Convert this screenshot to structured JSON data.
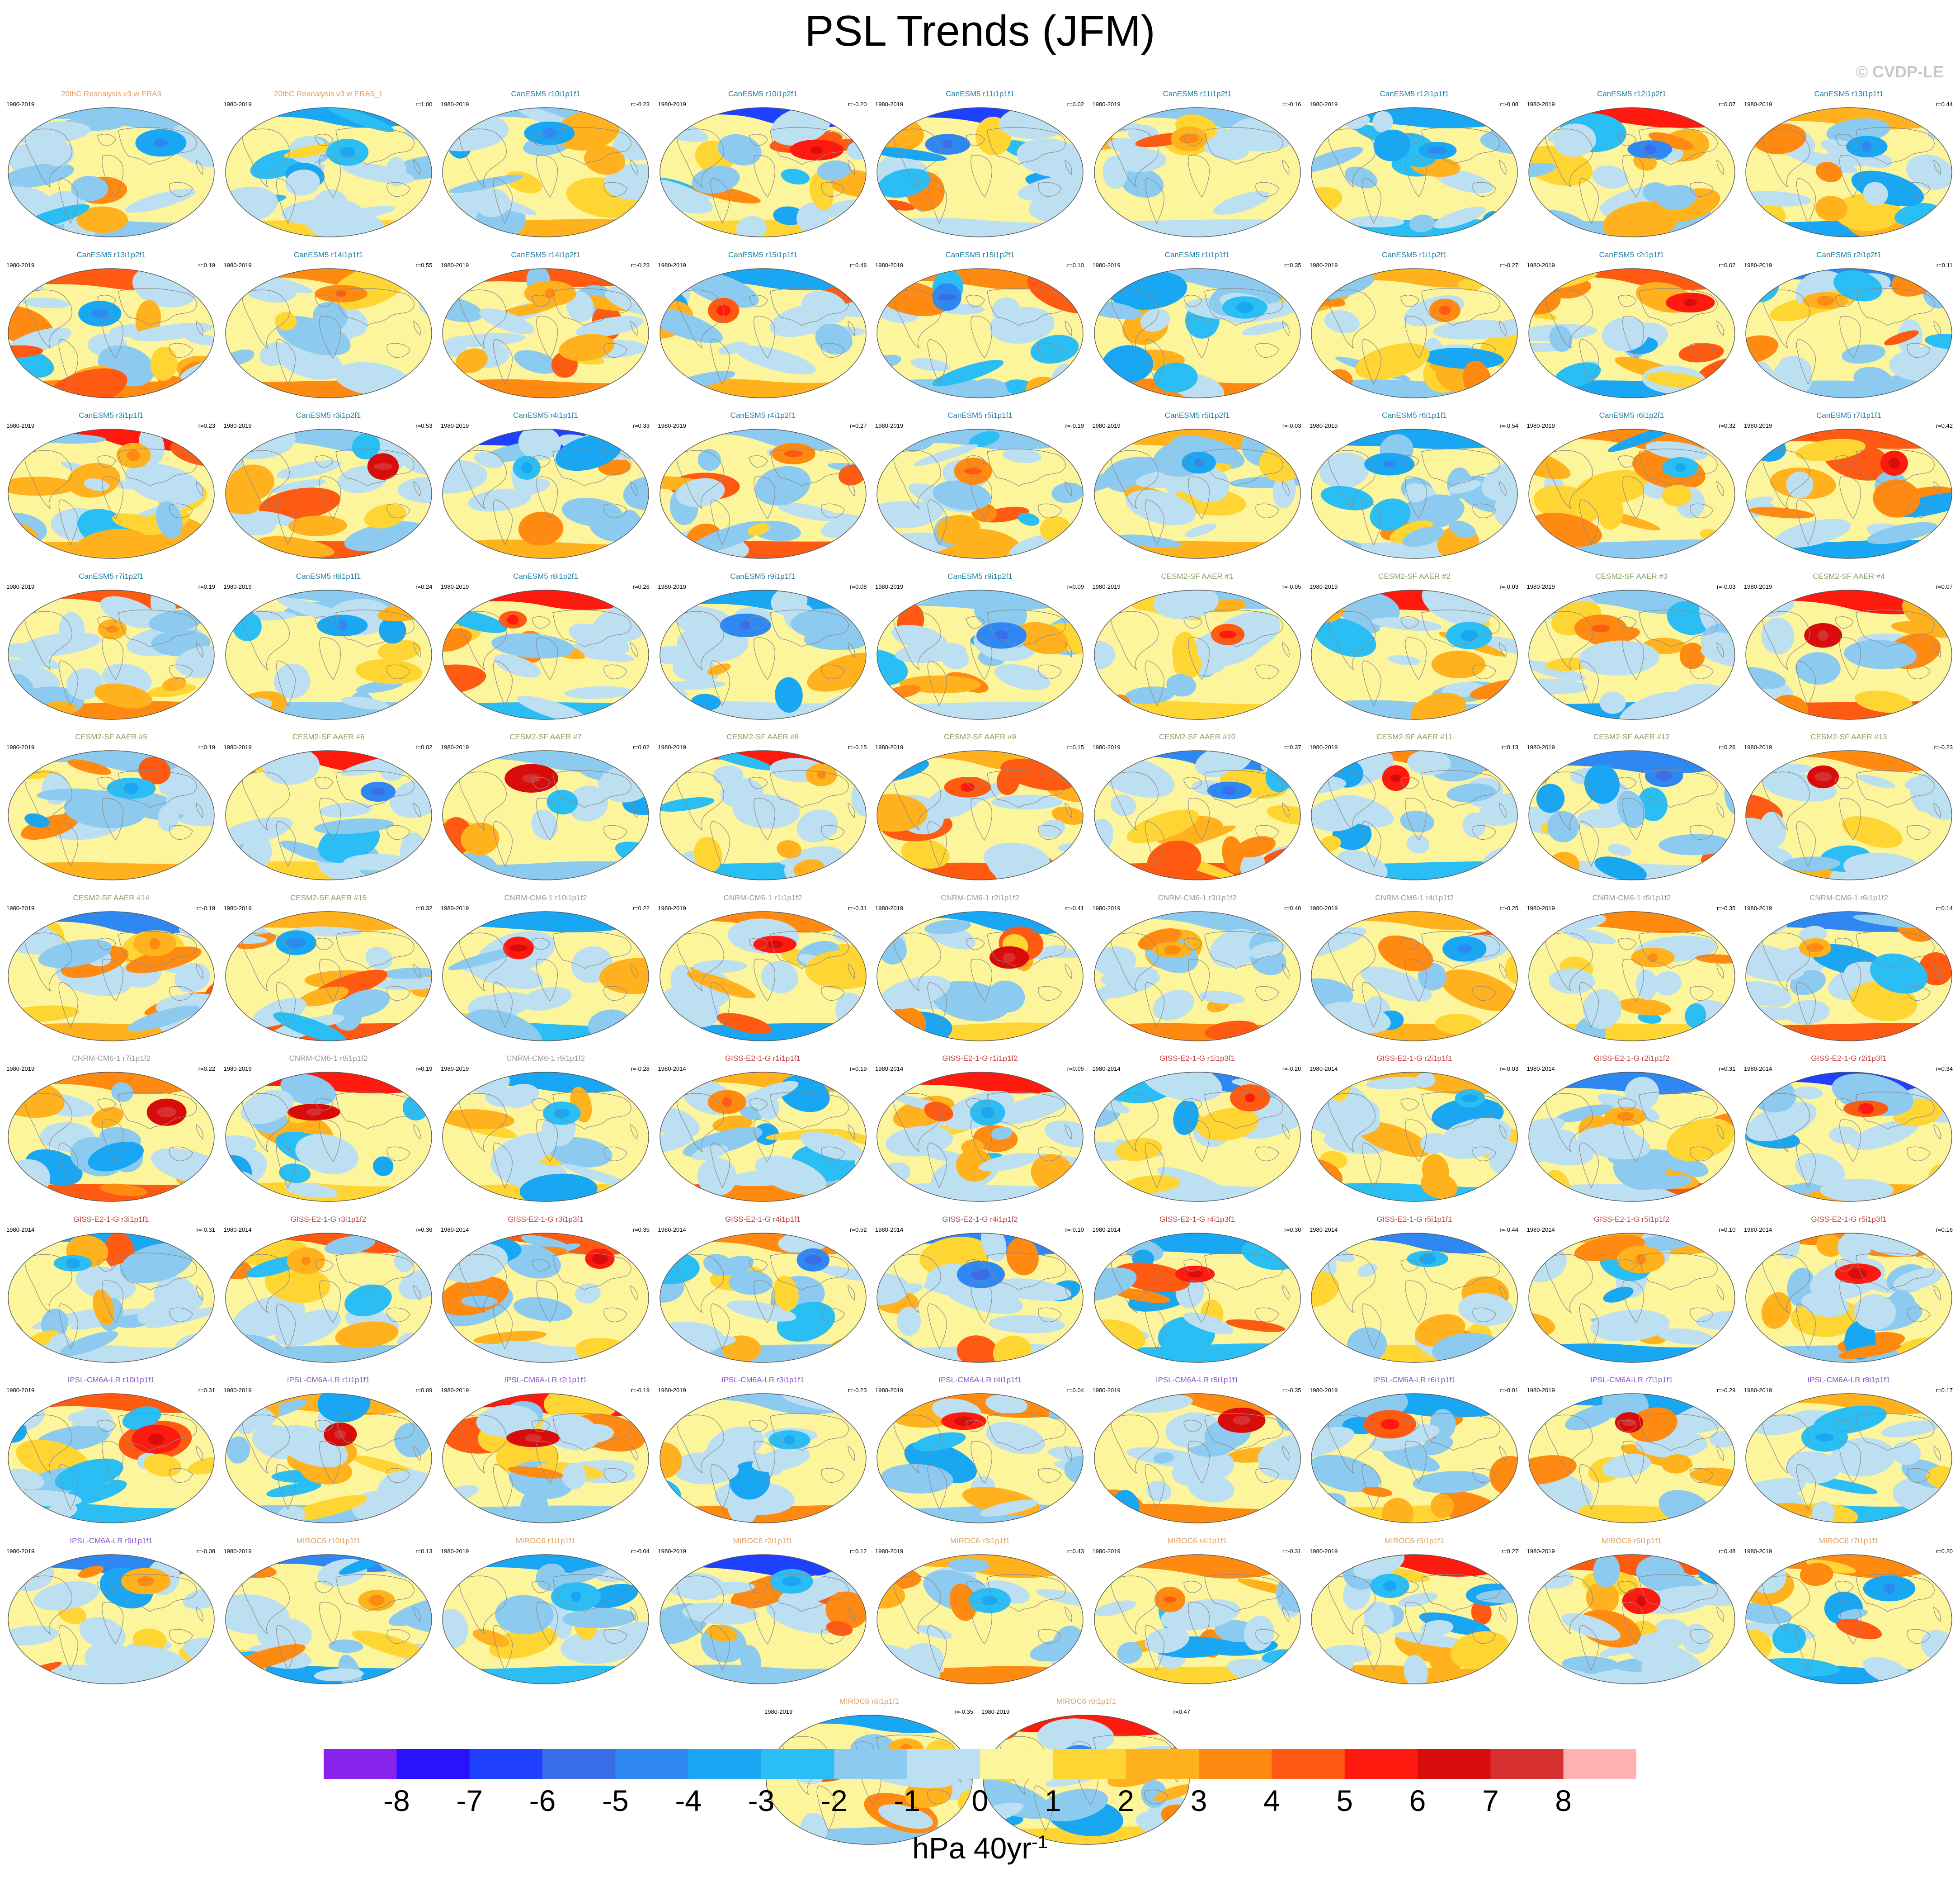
{
  "title": "PSL Trends (JFM)",
  "credit": "© CVDP-LE",
  "colorbar": {
    "units": "hPa 40yr",
    "units_exponent": "-1",
    "ticks": [
      "-8",
      "-7",
      "-6",
      "-5",
      "-4",
      "-3",
      "-2",
      "-1",
      "0",
      "1",
      "2",
      "3",
      "4",
      "5",
      "6",
      "7",
      "8"
    ],
    "colors": [
      "#8a22ee",
      "#2a12ff",
      "#2040ff",
      "#3a6ee8",
      "#2f88f2",
      "#19a6f2",
      "#2bbef4",
      "#8ccaef",
      "#bddff2",
      "#fdf59c",
      "#ffd534",
      "#ffb21e",
      "#ff8a12",
      "#ff5a12",
      "#ff1a10",
      "#d80d0b",
      "#d63030",
      "#ffb0b0"
    ]
  },
  "chart_data": {
    "type": "heatmap",
    "title": "PSL Trends (JFM)",
    "description_units": "hPa 40yr-1",
    "legend_placement": "bottom",
    "colorbar_range": [
      -8,
      8
    ],
    "panels": [
      {
        "name": "20thC Reanalysis v3 w ERA5",
        "period": "1980-2019",
        "r": "",
        "group": "obs"
      },
      {
        "name": "20thC Reanalysis v3 w ERA5_1",
        "period": "1980-2019",
        "r": "r=1.00",
        "group": "obs"
      },
      {
        "name": "CanESM5 r10i1p1f1",
        "period": "1980-2019",
        "r": "r=-0.23",
        "group": "canesm"
      },
      {
        "name": "CanESM5 r10i1p2f1",
        "period": "1980-2019",
        "r": "r=-0.20",
        "group": "canesm"
      },
      {
        "name": "CanESM5 r11i1p1f1",
        "period": "1980-2019",
        "r": "r=0.02",
        "group": "canesm"
      },
      {
        "name": "CanESM5 r11i1p2f1",
        "period": "1980-2019",
        "r": "r=-0.16",
        "group": "canesm"
      },
      {
        "name": "CanESM5 r12i1p1f1",
        "period": "1980-2019",
        "r": "r=-0.08",
        "group": "canesm"
      },
      {
        "name": "CanESM5 r12i1p2f1",
        "period": "1980-2019",
        "r": "r=0.07",
        "group": "canesm"
      },
      {
        "name": "CanESM5 r13i1p1f1",
        "period": "1980-2019",
        "r": "r=0.44",
        "group": "canesm"
      },
      {
        "name": "CanESM5 r13i1p2f1",
        "period": "1980-2019",
        "r": "r=0.19",
        "group": "canesm"
      },
      {
        "name": "CanESM5 r14i1p1f1",
        "period": "1980-2019",
        "r": "r=0.55",
        "group": "canesm"
      },
      {
        "name": "CanESM5 r14i1p2f1",
        "period": "1980-2019",
        "r": "r=-0.23",
        "group": "canesm"
      },
      {
        "name": "CanESM5 r15i1p1f1",
        "period": "1980-2019",
        "r": "r=0.46",
        "group": "canesm"
      },
      {
        "name": "CanESM5 r15i1p2f1",
        "period": "1980-2019",
        "r": "r=0.10",
        "group": "canesm"
      },
      {
        "name": "CanESM5 r1i1p1f1",
        "period": "1980-2019",
        "r": "r=0.35",
        "group": "canesm"
      },
      {
        "name": "CanESM5 r1i1p2f1",
        "period": "1980-2019",
        "r": "r=-0.27",
        "group": "canesm"
      },
      {
        "name": "CanESM5 r2i1p1f1",
        "period": "1980-2019",
        "r": "r=0.02",
        "group": "canesm"
      },
      {
        "name": "CanESM5 r2i1p2f1",
        "period": "1980-2019",
        "r": "r=0.11",
        "group": "canesm"
      },
      {
        "name": "CanESM5 r3i1p1f1",
        "period": "1980-2019",
        "r": "r=0.23",
        "group": "canesm"
      },
      {
        "name": "CanESM5 r3i1p2f1",
        "period": "1980-2019",
        "r": "r=0.53",
        "group": "canesm"
      },
      {
        "name": "CanESM5 r4i1p1f1",
        "period": "1980-2019",
        "r": "r=0.33",
        "group": "canesm"
      },
      {
        "name": "CanESM5 r4i1p2f1",
        "period": "1980-2019",
        "r": "r=0.27",
        "group": "canesm"
      },
      {
        "name": "CanESM5 r5i1p1f1",
        "period": "1980-2019",
        "r": "r=-0.19",
        "group": "canesm"
      },
      {
        "name": "CanESM5 r5i1p2f1",
        "period": "1980-2019",
        "r": "r=-0.03",
        "group": "canesm"
      },
      {
        "name": "CanESM5 r6i1p1f1",
        "period": "1980-2019",
        "r": "r=-0.54",
        "group": "canesm"
      },
      {
        "name": "CanESM5 r6i1p2f1",
        "period": "1980-2019",
        "r": "r=0.32",
        "group": "canesm"
      },
      {
        "name": "CanESM5 r7i1p1f1",
        "period": "1980-2019",
        "r": "r=0.42",
        "group": "canesm"
      },
      {
        "name": "CanESM5 r7i1p2f1",
        "period": "1980-2019",
        "r": "r=0.19",
        "group": "canesm"
      },
      {
        "name": "CanESM5 r8i1p1f1",
        "period": "1980-2019",
        "r": "r=0.24",
        "group": "canesm"
      },
      {
        "name": "CanESM5 r8i1p2f1",
        "period": "1980-2019",
        "r": "r=0.26",
        "group": "canesm"
      },
      {
        "name": "CanESM5 r9i1p1f1",
        "period": "1980-2019",
        "r": "r=0.08",
        "group": "canesm"
      },
      {
        "name": "CanESM5 r9i1p2f1",
        "period": "1980-2019",
        "r": "r=0.09",
        "group": "canesm"
      },
      {
        "name": "CESM2-SF AAER #1",
        "period": "1980-2019",
        "r": "r=-0.05",
        "group": "cesm"
      },
      {
        "name": "CESM2-SF AAER #2",
        "period": "1980-2019",
        "r": "r=-0.03",
        "group": "cesm"
      },
      {
        "name": "CESM2-SF AAER #3",
        "period": "1980-2019",
        "r": "r=-0.03",
        "group": "cesm"
      },
      {
        "name": "CESM2-SF AAER #4",
        "period": "1980-2019",
        "r": "r=0.07",
        "group": "cesm"
      },
      {
        "name": "CESM2-SF AAER #5",
        "period": "1980-2019",
        "r": "r=0.19",
        "group": "cesm"
      },
      {
        "name": "CESM2-SF AAER #6",
        "period": "1980-2019",
        "r": "r=0.02",
        "group": "cesm"
      },
      {
        "name": "CESM2-SF AAER #7",
        "period": "1980-2019",
        "r": "r=0.02",
        "group": "cesm"
      },
      {
        "name": "CESM2-SF AAER #8",
        "period": "1980-2019",
        "r": "r=-0.15",
        "group": "cesm"
      },
      {
        "name": "CESM2-SF AAER #9",
        "period": "1980-2019",
        "r": "r=0.15",
        "group": "cesm"
      },
      {
        "name": "CESM2-SF AAER #10",
        "period": "1980-2019",
        "r": "r=0.37",
        "group": "cesm"
      },
      {
        "name": "CESM2-SF AAER #11",
        "period": "1980-2019",
        "r": "r=0.13",
        "group": "cesm"
      },
      {
        "name": "CESM2-SF AAER #12",
        "period": "1980-2019",
        "r": "r=0.26",
        "group": "cesm"
      },
      {
        "name": "CESM2-SF AAER #13",
        "period": "1980-2019",
        "r": "r=-0.23",
        "group": "cesm"
      },
      {
        "name": "CESM2-SF AAER #14",
        "period": "1980-2019",
        "r": "r=-0.19",
        "group": "cesm"
      },
      {
        "name": "CESM2-SF AAER #15",
        "period": "1980-2019",
        "r": "r=0.32",
        "group": "cesm"
      },
      {
        "name": "CNRM-CM6-1 r10i1p1f2",
        "period": "1980-2019",
        "r": "r=0.22",
        "group": "cnrm"
      },
      {
        "name": "CNRM-CM6-1 r1i1p1f2",
        "period": "1980-2019",
        "r": "r=-0.31",
        "group": "cnrm"
      },
      {
        "name": "CNRM-CM6-1 r2i1p1f2",
        "period": "1980-2019",
        "r": "r=-0.41",
        "group": "cnrm"
      },
      {
        "name": "CNRM-CM6-1 r3i1p1f2",
        "period": "1980-2019",
        "r": "r=0.40",
        "group": "cnrm"
      },
      {
        "name": "CNRM-CM6-1 r4i1p1f2",
        "period": "1980-2019",
        "r": "r=-0.25",
        "group": "cnrm"
      },
      {
        "name": "CNRM-CM6-1 r5i1p1f2",
        "period": "1980-2019",
        "r": "r=-0.35",
        "group": "cnrm"
      },
      {
        "name": "CNRM-CM6-1 r6i1p1f2",
        "period": "1980-2019",
        "r": "r=0.14",
        "group": "cnrm"
      },
      {
        "name": "CNRM-CM6-1 r7i1p1f2",
        "period": "1980-2019",
        "r": "r=0.22",
        "group": "cnrm"
      },
      {
        "name": "CNRM-CM6-1 r8i1p1f2",
        "period": "1980-2019",
        "r": "r=0.19",
        "group": "cnrm"
      },
      {
        "name": "CNRM-CM6-1 r9i1p1f2",
        "period": "1980-2019",
        "r": "r=-0.28",
        "group": "cnrm"
      },
      {
        "name": "GISS-E2-1-G r1i1p1f1",
        "period": "1980-2014",
        "r": "r=0.19",
        "group": "giss"
      },
      {
        "name": "GISS-E2-1-G r1i1p1f2",
        "period": "1980-2014",
        "r": "r=0.05",
        "group": "giss"
      },
      {
        "name": "GISS-E2-1-G r1i1p3f1",
        "period": "1980-2014",
        "r": "r=-0.20",
        "group": "giss"
      },
      {
        "name": "GISS-E2-1-G r2i1p1f1",
        "period": "1980-2014",
        "r": "r=-0.03",
        "group": "giss"
      },
      {
        "name": "GISS-E2-1-G r2i1p1f2",
        "period": "1980-2014",
        "r": "r=0.31",
        "group": "giss"
      },
      {
        "name": "GISS-E2-1-G r2i1p3f1",
        "period": "1980-2014",
        "r": "r=0.34",
        "group": "giss"
      },
      {
        "name": "GISS-E2-1-G r3i1p1f1",
        "period": "1980-2014",
        "r": "r=-0.31",
        "group": "giss"
      },
      {
        "name": "GISS-E2-1-G r3i1p1f2",
        "period": "1980-2014",
        "r": "r=0.36",
        "group": "giss"
      },
      {
        "name": "GISS-E2-1-G r3i1p3f1",
        "period": "1980-2014",
        "r": "r=0.35",
        "group": "giss"
      },
      {
        "name": "GISS-E2-1-G r4i1p1f1",
        "period": "1980-2014",
        "r": "r=0.52",
        "group": "giss"
      },
      {
        "name": "GISS-E2-1-G r4i1p1f2",
        "period": "1980-2014",
        "r": "r=-0.10",
        "group": "giss"
      },
      {
        "name": "GISS-E2-1-G r4i1p3f1",
        "period": "1980-2014",
        "r": "r=0.30",
        "group": "giss"
      },
      {
        "name": "GISS-E2-1-G r5i1p1f1",
        "period": "1980-2014",
        "r": "r=-0.44",
        "group": "giss"
      },
      {
        "name": "GISS-E2-1-G r5i1p1f2",
        "period": "1980-2014",
        "r": "r=0.10",
        "group": "giss"
      },
      {
        "name": "GISS-E2-1-G r5i1p3f1",
        "period": "1980-2014",
        "r": "r=0.16",
        "group": "giss"
      },
      {
        "name": "IPSL-CM6A-LR r10i1p1f1",
        "period": "1980-2019",
        "r": "r=0.31",
        "group": "ipsl"
      },
      {
        "name": "IPSL-CM6A-LR r1i1p1f1",
        "period": "1980-2019",
        "r": "r=0.09",
        "group": "ipsl"
      },
      {
        "name": "IPSL-CM6A-LR r2i1p1f1",
        "period": "1980-2019",
        "r": "r=-0.19",
        "group": "ipsl"
      },
      {
        "name": "IPSL-CM6A-LR r3i1p1f1",
        "period": "1980-2019",
        "r": "r=-0.23",
        "group": "ipsl"
      },
      {
        "name": "IPSL-CM6A-LR r4i1p1f1",
        "period": "1980-2019",
        "r": "r=0.04",
        "group": "ipsl"
      },
      {
        "name": "IPSL-CM6A-LR r5i1p1f1",
        "period": "1980-2019",
        "r": "r=-0.35",
        "group": "ipsl"
      },
      {
        "name": "IPSL-CM6A-LR r6i1p1f1",
        "period": "1980-2019",
        "r": "r=-0.01",
        "group": "ipsl"
      },
      {
        "name": "IPSL-CM6A-LR r7i1p1f1",
        "period": "1980-2019",
        "r": "r=-0.29",
        "group": "ipsl"
      },
      {
        "name": "IPSL-CM6A-LR r8i1p1f1",
        "period": "1980-2019",
        "r": "r=0.17",
        "group": "ipsl"
      },
      {
        "name": "IPSL-CM6A-LR r9i1p1f1",
        "period": "1980-2019",
        "r": "r=-0.08",
        "group": "ipsl"
      },
      {
        "name": "MIROC6 r10i1p1f1",
        "period": "1980-2019",
        "r": "r=0.13",
        "group": "miroc"
      },
      {
        "name": "MIROC6 r1i1p1f1",
        "period": "1980-2019",
        "r": "r=-0.04",
        "group": "miroc"
      },
      {
        "name": "MIROC6 r2i1p1f1",
        "period": "1980-2019",
        "r": "r=0.12",
        "group": "miroc"
      },
      {
        "name": "MIROC6 r3i1p1f1",
        "period": "1980-2019",
        "r": "r=0.43",
        "group": "miroc"
      },
      {
        "name": "MIROC6 r4i1p1f1",
        "period": "1980-2019",
        "r": "r=-0.31",
        "group": "miroc"
      },
      {
        "name": "MIROC6 r5i1p1f1",
        "period": "1980-2019",
        "r": "r=0.27",
        "group": "miroc"
      },
      {
        "name": "MIROC6 r6i1p1f1",
        "period": "1980-2019",
        "r": "r=0.48",
        "group": "miroc"
      },
      {
        "name": "MIROC6 r7i1p1f1",
        "period": "1980-2019",
        "r": "r=0.20",
        "group": "miroc"
      },
      {
        "name": "MIROC6 r8i1p1f1",
        "period": "1980-2019",
        "r": "r=-0.35",
        "group": "miroc"
      },
      {
        "name": "MIROC6 r9i1p1f1",
        "period": "1980-2019",
        "r": "r=0.47",
        "group": "miroc"
      }
    ],
    "group_title_colors": {
      "obs": "#e0a060",
      "canesm": "#1d7fa0",
      "cesm": "#8aa060",
      "cnrm": "#9a9a9a",
      "giss": "#c84040",
      "ipsl": "#8a55cc",
      "miroc": "#e0a060"
    }
  }
}
